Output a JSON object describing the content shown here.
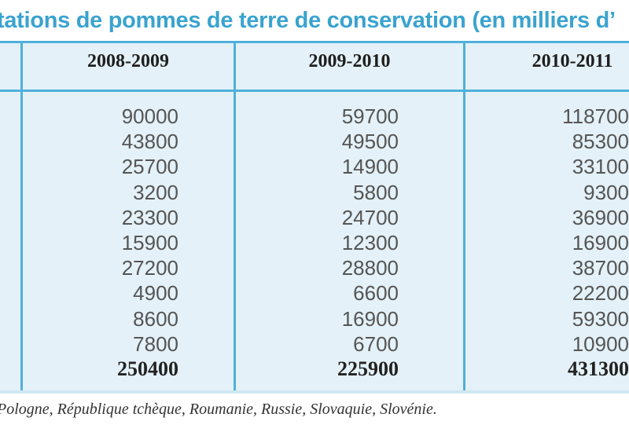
{
  "title": "tations de pommes de terre de conservation (en milliers d’",
  "columns": [
    {
      "header": "2008-2009",
      "values": [
        "90000",
        "43800",
        "25700",
        "3200",
        "23300",
        "15900",
        "27200",
        "4900",
        "8600",
        "7800"
      ],
      "total": "250400"
    },
    {
      "header": "2009-2010",
      "values": [
        "59700",
        "49500",
        "14900",
        "5800",
        "24700",
        "12300",
        "28800",
        "6600",
        "16900",
        "6700"
      ],
      "total": "225900"
    },
    {
      "header": "2010-2011",
      "values": [
        "118700",
        "85300",
        "33100",
        "9300",
        "36900",
        "16900",
        "38700",
        "22200",
        "59300",
        "10900"
      ],
      "total": "431300"
    }
  ],
  "footnote": ", Pologne, République tchèque, Roumanie, Russie, Slovaquie, Slovénie.",
  "colors": {
    "accent": "#3aa3cf",
    "rule": "#4fb0da",
    "table_background": "#e4f1f8"
  }
}
